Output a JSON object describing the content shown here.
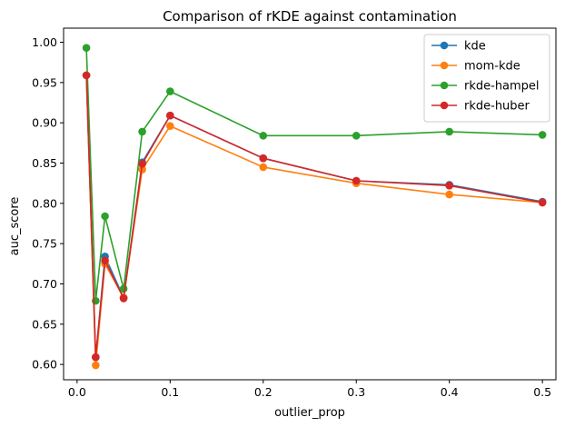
{
  "chart_data": {
    "type": "line",
    "title": "Comparison of rKDE against contamination",
    "xlabel": "outlier_prop",
    "ylabel": "auc_score",
    "xlim": [
      -0.0145,
      0.5145
    ],
    "ylim": [
      0.581,
      1.0175
    ],
    "xticks": [
      "0.0",
      "0.1",
      "0.2",
      "0.3",
      "0.4",
      "0.5"
    ],
    "yticks": [
      "0.60",
      "0.65",
      "0.70",
      "0.75",
      "0.80",
      "0.85",
      "0.90",
      "0.95",
      "1.00"
    ],
    "x": [
      0.01,
      0.02,
      0.03,
      0.05,
      0.07,
      0.1,
      0.2,
      0.3,
      0.4,
      0.5
    ],
    "series": [
      {
        "name": "kde",
        "color": "#1f77b4",
        "values": [
          0.959,
          0.609,
          0.734,
          0.683,
          0.851,
          0.909,
          0.856,
          0.828,
          0.823,
          0.802
        ]
      },
      {
        "name": "mom-kde",
        "color": "#ff7f0e",
        "values": [
          0.959,
          0.599,
          0.725,
          0.683,
          0.842,
          0.896,
          0.845,
          0.825,
          0.811,
          0.801
        ]
      },
      {
        "name": "rkde-hampel",
        "color": "#2ca02c",
        "values": [
          0.993,
          0.679,
          0.784,
          0.694,
          0.889,
          0.939,
          0.884,
          0.884,
          0.889,
          0.885
        ]
      },
      {
        "name": "rkde-huber",
        "color": "#d62728",
        "values": [
          0.959,
          0.609,
          0.729,
          0.682,
          0.849,
          0.909,
          0.856,
          0.828,
          0.822,
          0.801
        ]
      }
    ],
    "legend_position": "top-right",
    "grid": false
  }
}
